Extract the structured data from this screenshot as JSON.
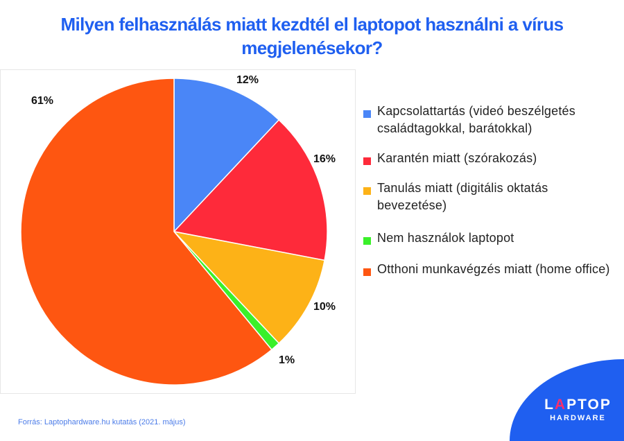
{
  "chart_data": {
    "type": "pie",
    "title": "Milyen felhasználás miatt kezdtél el laptopot használni a vírus megjelenésekor?",
    "slices": [
      {
        "label": "Kapcsolattartás (videó beszélgetés családtagokkal, barátokkal)",
        "value": 12,
        "data_label": "12%",
        "color": "#4a86f7"
      },
      {
        "label": "Karantén miatt (szórakozás)",
        "value": 16,
        "data_label": "16%",
        "color": "#fe2a3a"
      },
      {
        "label": "Tanulás miatt (digitális oktatás bevezetése)",
        "value": 10,
        "data_label": "10%",
        "color": "#fdb217"
      },
      {
        "label": "Nem használok laptopot",
        "value": 1,
        "data_label": "1%",
        "color": "#3af02a"
      },
      {
        "label": "Otthoni munkavégzés miatt (home office)",
        "value": 61,
        "data_label": "61%",
        "color": "#fe5611"
      }
    ],
    "legend_position": "right",
    "start_angle": "12 o'clock, clockwise"
  },
  "source": "Forrás: Laptophardware.hu kutatás (2021. május)",
  "logo": {
    "line1_a": "L",
    "line1_b": "A",
    "line1_c": "PTOP",
    "line2": "HARDWARE",
    "bg_color": "#1f5ff0",
    "accent": "#ff2d6a"
  }
}
